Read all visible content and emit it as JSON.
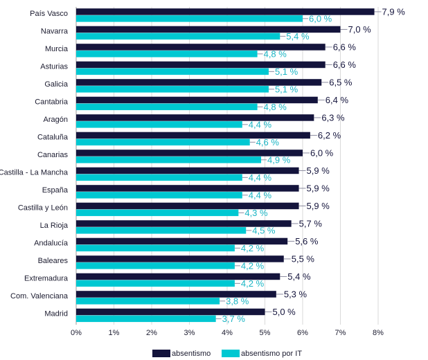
{
  "chart_data": {
    "type": "bar",
    "orientation": "horizontal",
    "title": "",
    "xlabel": "",
    "ylabel": "",
    "xlim": [
      0,
      8
    ],
    "x_ticks": [
      "0%",
      "1%",
      "2%",
      "3%",
      "4%",
      "5%",
      "6%",
      "7%",
      "8%"
    ],
    "grid": true,
    "legend_position": "bottom",
    "categories": [
      "País Vasco",
      "Navarra",
      "Murcia",
      "Asturias",
      "Galicia",
      "Cantabria",
      "Aragón",
      "Cataluña",
      "Canarias",
      "Castilla - La Mancha",
      "España",
      "Castilla y León",
      "La Rioja",
      "Andalucía",
      "Baleares",
      "Extremadura",
      "Com. Valenciana",
      "Madrid"
    ],
    "series": [
      {
        "name": "absentismo",
        "color": "#14143c",
        "label_color": "#14143c",
        "values": [
          7.9,
          7.0,
          6.6,
          6.6,
          6.5,
          6.4,
          6.3,
          6.2,
          6.0,
          5.9,
          5.9,
          5.9,
          5.7,
          5.6,
          5.5,
          5.4,
          5.3,
          5.0
        ],
        "labels": [
          "7,9 %",
          "7,0 %",
          "6,6 %",
          "6,6 %",
          "6,5 %",
          "6,4 %",
          "6,3 %",
          "6,2 %",
          "6,0 %",
          "5,9 %",
          "5,9 %",
          "5,9 %",
          "5,7 %",
          "5,6 %",
          "5,5 %",
          "5,4 %",
          "5,3 %",
          "5,0 %"
        ]
      },
      {
        "name": "absentismo por IT",
        "color": "#00c8d2",
        "label_color": "#1ab5c4",
        "values": [
          6.0,
          5.4,
          4.8,
          5.1,
          5.1,
          4.8,
          4.4,
          4.6,
          4.9,
          4.4,
          4.4,
          4.3,
          4.5,
          4.2,
          4.2,
          4.2,
          3.8,
          3.7
        ],
        "labels": [
          "6,0 %",
          "5,4 %",
          "4,8 %",
          "5,1 %",
          "5,1 %",
          "4,8 %",
          "4,4 %",
          "4,6 %",
          "4,9 %",
          "4,4 %",
          "4,4 %",
          "4,3 %",
          "4,5 %",
          "4,2 %",
          "4,2 %",
          "4,2 %",
          "3,8 %",
          "3,7 %"
        ]
      }
    ]
  }
}
